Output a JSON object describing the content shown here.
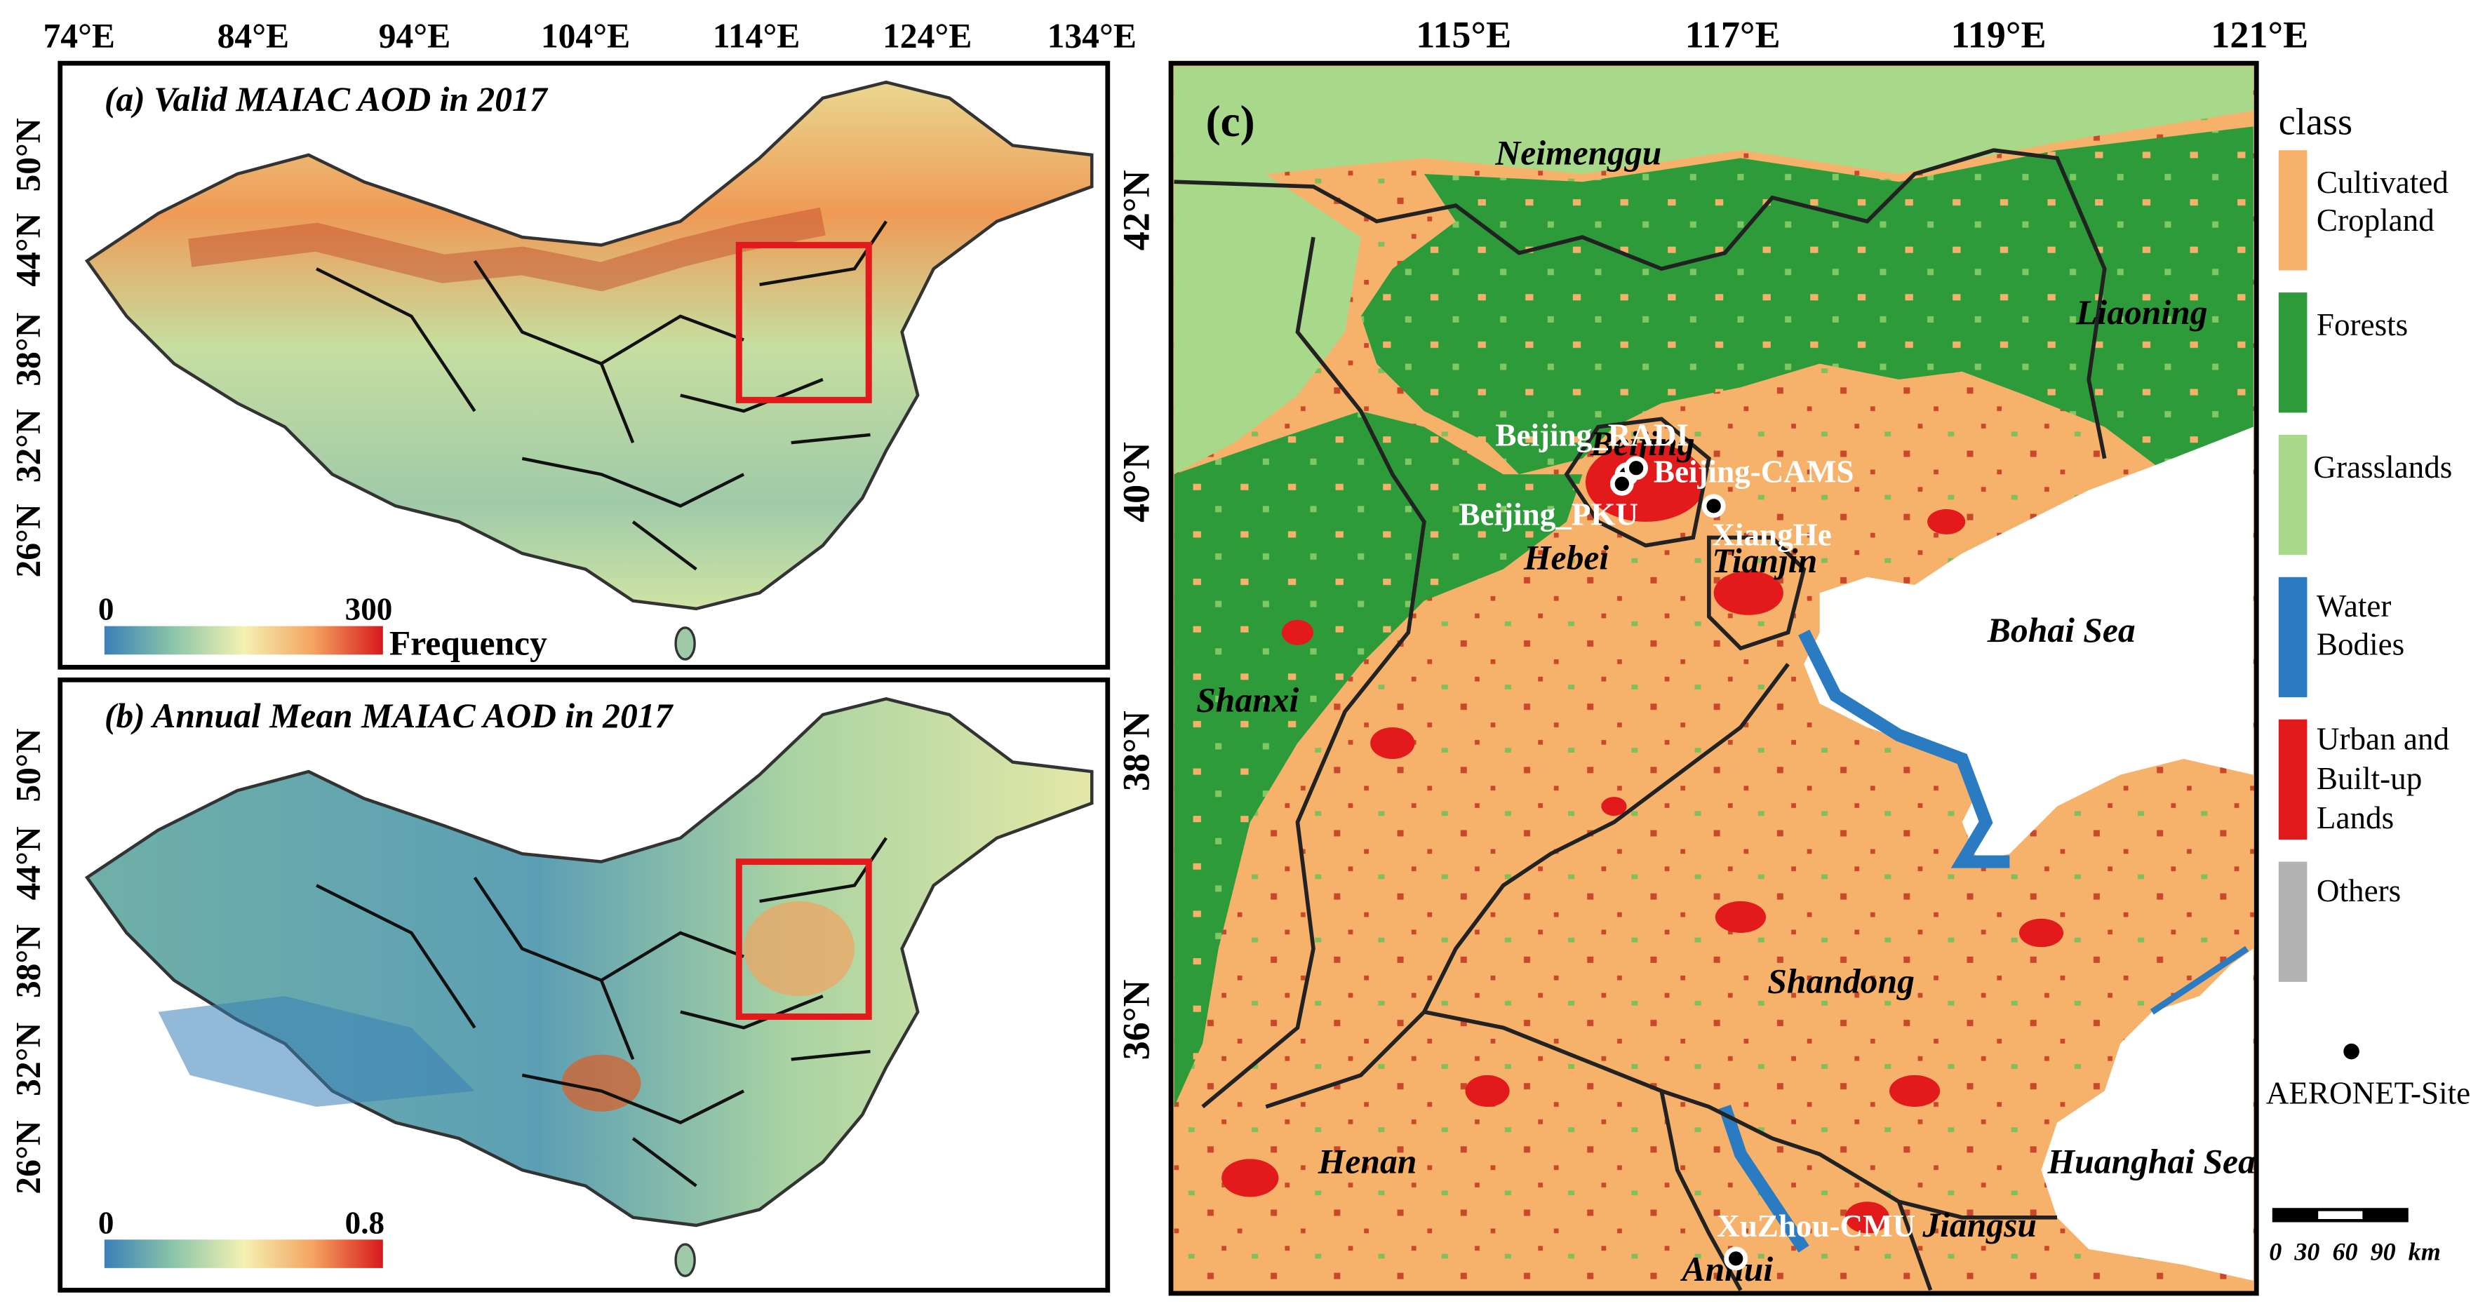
{
  "panel_a": {
    "title": "(a) Valid MAIAC AOD in 2017",
    "colorbar": {
      "min": "0",
      "max": "300",
      "label": "Frequency"
    },
    "lon_ticks": [
      "74°E",
      "84°E",
      "94°E",
      "104°E",
      "114°E",
      "124°E",
      "134°E"
    ],
    "lat_ticks": [
      "50°N",
      "44°N",
      "38°N",
      "32°N",
      "26°N"
    ]
  },
  "panel_b": {
    "title": "(b) Annual Mean MAIAC AOD in 2017",
    "colorbar": {
      "min": "0",
      "max": "0.8"
    },
    "lat_ticks": [
      "50°N",
      "44°N",
      "38°N",
      "32°N",
      "26°N"
    ]
  },
  "panel_c": {
    "label": "(c)",
    "lon_ticks": [
      "115°E",
      "117°E",
      "119°E",
      "121°E"
    ],
    "lat_ticks": [
      "42°N",
      "40°N",
      "38°N",
      "36°N"
    ],
    "regions": [
      "Neimenggu",
      "Liaoning",
      "Hebei",
      "Tianjin",
      "Shanxi",
      "Bohai Sea",
      "Shandong",
      "Henan",
      "Huanghai Sea",
      "Jiangsu",
      "Anhui",
      "Beijing"
    ],
    "sites": [
      "Beijing_RADI",
      "Beijing-CAMS",
      "Beijing_PKU",
      "XiangHe",
      "XuZhou-CMU"
    ],
    "legend": {
      "title": "class",
      "classes": [
        {
          "name": "Cultivated Cropland",
          "lines": [
            "Cultivated",
            "Cropland"
          ],
          "color": "#f6b26b"
        },
        {
          "name": "Forests",
          "lines": [
            "Forests"
          ],
          "color": "#2e9b3a"
        },
        {
          "name": "Grasslands",
          "lines": [
            "Grasslands"
          ],
          "color": "#a8d88a"
        },
        {
          "name": "Water Bodies",
          "lines": [
            "Water",
            "Bodies"
          ],
          "color": "#2b7bc3"
        },
        {
          "name": "Urban and Built-up Lands",
          "lines": [
            "Urban and",
            "Built-up",
            "Lands"
          ],
          "color": "#e31a1c"
        },
        {
          "name": "Others",
          "lines": [
            "Others"
          ],
          "color": "#b3b3b3"
        }
      ],
      "site_label": "AERONET-Site",
      "scale_bar": "0  30  60  90  km"
    }
  }
}
